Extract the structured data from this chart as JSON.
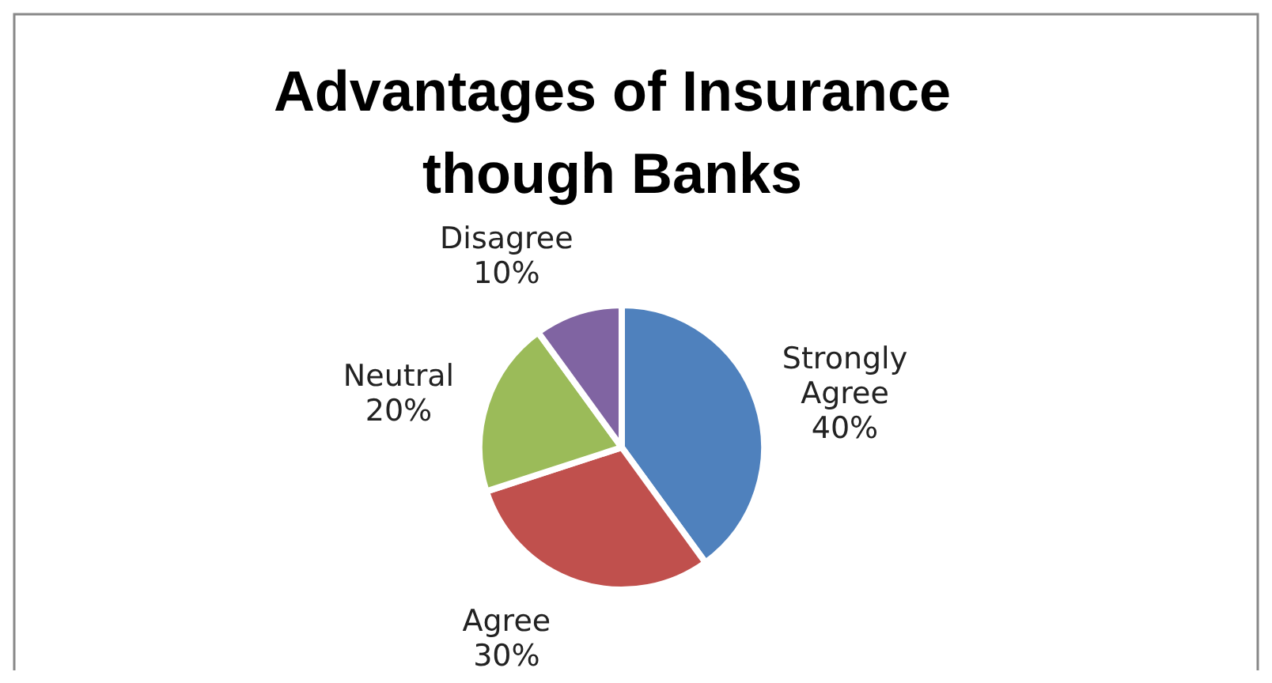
{
  "chart_data": {
    "type": "pie",
    "title": "Advantages of Insurance though Banks",
    "categories": [
      "Strongly Agree",
      "Agree",
      "Neutral",
      "Disagree"
    ],
    "values": [
      40,
      30,
      20,
      10
    ],
    "colors": [
      "#4f81bd",
      "#c0504d",
      "#9bbb59",
      "#8064a2"
    ],
    "value_labels": [
      "40%",
      "30%",
      "20%",
      "10%"
    ],
    "legend": false
  }
}
